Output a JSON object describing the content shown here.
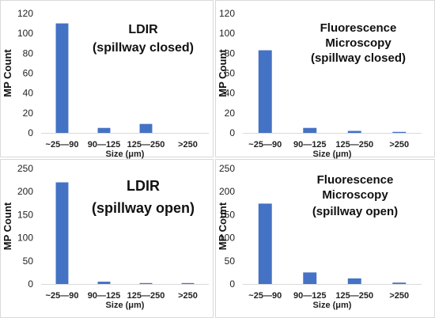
{
  "chart_data": [
    {
      "type": "bar",
      "annotation": [
        "LDIR",
        "(spillway closed)"
      ],
      "categories": [
        "~25—90",
        "90—125",
        "125—250",
        ">250"
      ],
      "values": [
        110,
        5,
        9,
        0
      ],
      "xlabel": "Size (μm)",
      "ylabel": "MP Count",
      "ylim": [
        0,
        120
      ],
      "yticks": [
        0,
        20,
        40,
        60,
        80,
        100,
        120
      ],
      "color": "#4472c4",
      "grid": false
    },
    {
      "type": "bar",
      "annotation": [
        "Fluorescence",
        "Microscopy",
        "(spillway closed)"
      ],
      "categories": [
        "~25—90",
        "90—125",
        "125—250",
        ">250"
      ],
      "values": [
        83,
        5,
        2,
        1
      ],
      "xlabel": "Size (μm)",
      "ylabel": "MP Count",
      "ylim": [
        0,
        120
      ],
      "yticks": [
        0,
        20,
        40,
        60,
        80,
        100,
        120
      ],
      "color": "#4472c4",
      "grid": false
    },
    {
      "type": "bar",
      "annotation": [
        "LDIR",
        "(spillway open)"
      ],
      "categories": [
        "~25—90",
        "90—125",
        "125—250",
        ">250"
      ],
      "values": [
        220,
        5,
        2,
        2
      ],
      "xlabel": "Size (μm)",
      "ylabel": "MP Count",
      "ylim": [
        0,
        250
      ],
      "yticks": [
        0,
        50,
        100,
        150,
        200,
        250
      ],
      "color": "#4472c4",
      "grid": false
    },
    {
      "type": "bar",
      "annotation": [
        "Fluorescence",
        "Microscopy",
        "(spillway open)"
      ],
      "categories": [
        "~25—90",
        "90—125",
        "125—250",
        ">250"
      ],
      "values": [
        174,
        25,
        12,
        3
      ],
      "xlabel": "Size (μm)",
      "ylabel": "MP Count",
      "ylim": [
        0,
        250
      ],
      "yticks": [
        0,
        50,
        100,
        150,
        200,
        250
      ],
      "color": "#4472c4",
      "grid": false
    }
  ]
}
